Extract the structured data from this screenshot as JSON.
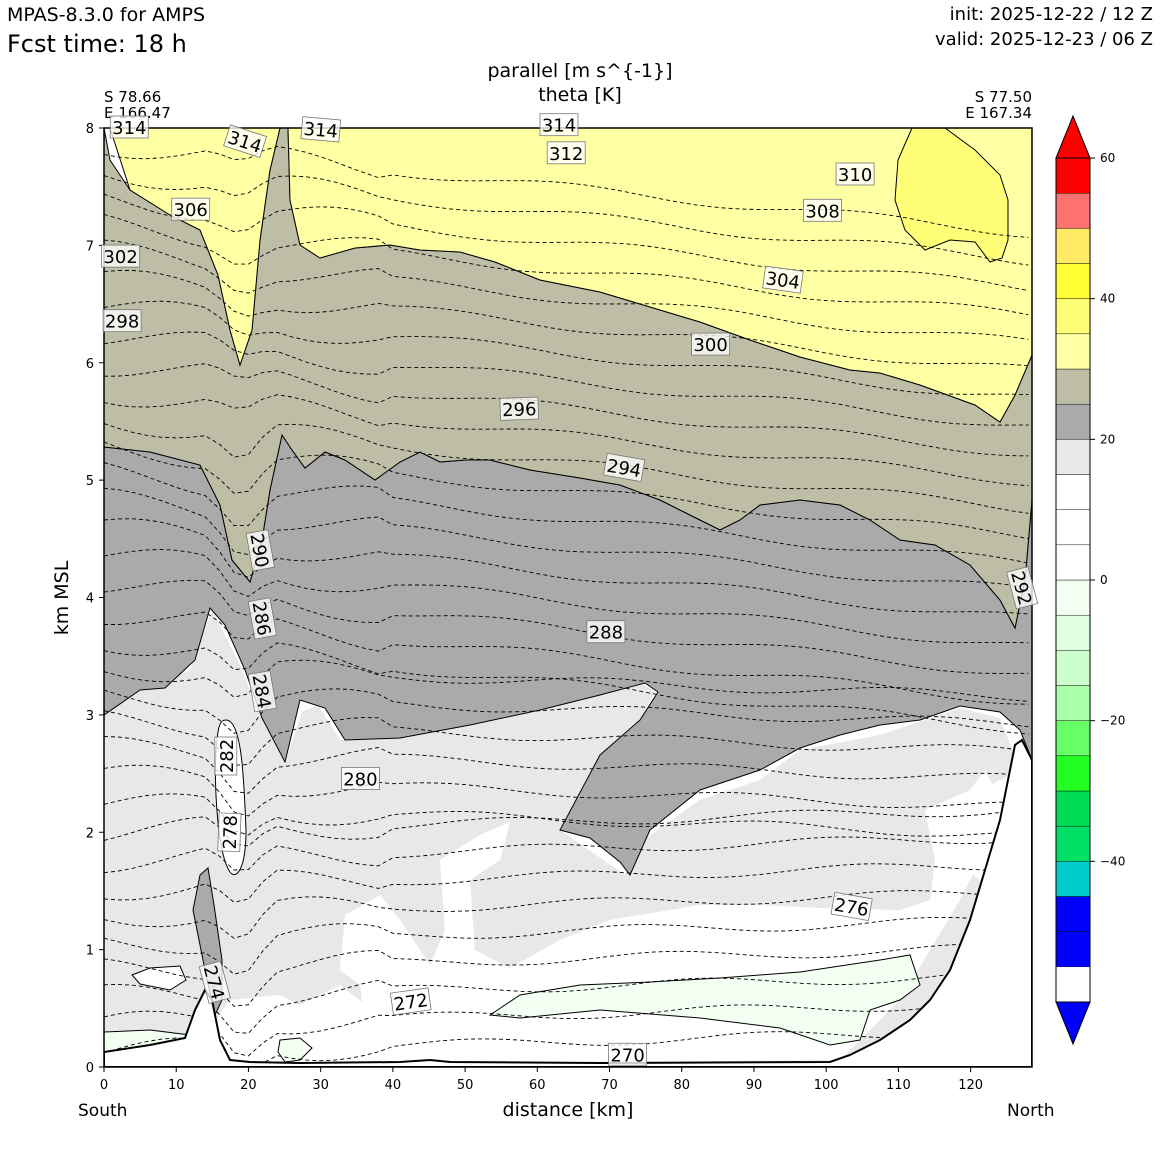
{
  "header": {
    "model": "MPAS-8.3.0 for AMPS",
    "fcst_time": "Fcst time:   18 h",
    "init": "init: 2025-12-22 / 12 Z",
    "valid": "valid: 2025-12-23 / 06 Z"
  },
  "title": {
    "line1": "parallel [m s^{-1}]",
    "line2": "theta [K]"
  },
  "endpoints": {
    "left_lat": "S 78.66",
    "left_lon": "E 166.47",
    "right_lat": "S 77.50",
    "right_lon": "E 167.34",
    "left_dir": "South",
    "right_dir": "North"
  },
  "chart_data": {
    "type": "cross-section contour",
    "xlabel": "distance [km]",
    "ylabel": "km MSL",
    "xlim": [
      0,
      128.5
    ],
    "ylim": [
      0,
      8
    ],
    "xticks": [
      "0",
      "10",
      "20",
      "30",
      "40",
      "50",
      "60",
      "70",
      "80",
      "90",
      "100",
      "110",
      "120"
    ],
    "yticks": [
      "0",
      "1",
      "2",
      "3",
      "4",
      "5",
      "6",
      "7",
      "8"
    ],
    "filled_variable": "parallel wind [m s^-1]",
    "contour_variable": "theta [K]",
    "theta_labels": [
      {
        "text": "314",
        "x": 3.5,
        "y": 8.0
      },
      {
        "text": "314",
        "x": 19.5,
        "y": 7.88
      },
      {
        "text": "314",
        "x": 30.0,
        "y": 7.98
      },
      {
        "text": "314",
        "x": 63.0,
        "y": 8.02
      },
      {
        "text": "312",
        "x": 64.0,
        "y": 7.78
      },
      {
        "text": "310",
        "x": 104.0,
        "y": 7.6
      },
      {
        "text": "308",
        "x": 99.5,
        "y": 7.29
      },
      {
        "text": "306",
        "x": 12.0,
        "y": 7.3
      },
      {
        "text": "304",
        "x": 94.0,
        "y": 6.7
      },
      {
        "text": "302",
        "x": 2.3,
        "y": 6.9
      },
      {
        "text": "300",
        "x": 84.0,
        "y": 6.15
      },
      {
        "text": "298",
        "x": 2.5,
        "y": 6.35
      },
      {
        "text": "296",
        "x": 57.5,
        "y": 5.6
      },
      {
        "text": "294",
        "x": 72.0,
        "y": 5.1
      },
      {
        "text": "292",
        "x": 127.0,
        "y": 4.08
      },
      {
        "text": "290",
        "x": 21.5,
        "y": 4.4
      },
      {
        "text": "288",
        "x": 69.5,
        "y": 3.7
      },
      {
        "text": "286",
        "x": 21.8,
        "y": 3.82
      },
      {
        "text": "284",
        "x": 21.8,
        "y": 3.2
      },
      {
        "text": "282",
        "x": 17.0,
        "y": 2.65
      },
      {
        "text": "280",
        "x": 35.5,
        "y": 2.45
      },
      {
        "text": "278",
        "x": 17.5,
        "y": 2.0
      },
      {
        "text": "276",
        "x": 103.5,
        "y": 1.36
      },
      {
        "text": "274",
        "x": 15.2,
        "y": 0.72
      },
      {
        "text": "272",
        "x": 42.5,
        "y": 0.55
      },
      {
        "text": "270",
        "x": 72.5,
        "y": 0.1
      }
    ],
    "colorbar": {
      "ticks": [
        "60",
        "40",
        "20",
        "0",
        "−20",
        "−40"
      ],
      "tick_values": [
        60,
        40,
        20,
        0,
        -20,
        -40
      ],
      "levels": [
        -60,
        -55,
        -50,
        -45,
        -40,
        -35,
        -30,
        -25,
        -20,
        -15,
        -10,
        -5,
        0,
        5,
        10,
        15,
        20,
        25,
        30,
        35,
        40,
        45,
        50,
        55,
        60
      ],
      "colors": [
        "#0000ff",
        "#0000ff",
        "#0000ff",
        "#00cccc",
        "#00e066",
        "#00dd55",
        "#22ff22",
        "#66ff66",
        "#aaffaa",
        "#ccffcc",
        "#e0ffe0",
        "#f2fff2",
        "#ffffff",
        "#ffffff",
        "#ffffff",
        "#e8e8e8",
        "#aaaaaa",
        "#bebea6",
        "#ffffa4",
        "#ffff77",
        "#ffff33",
        "#ffea66",
        "#ff7070",
        "#ff0000",
        "#ff0000"
      ]
    }
  }
}
